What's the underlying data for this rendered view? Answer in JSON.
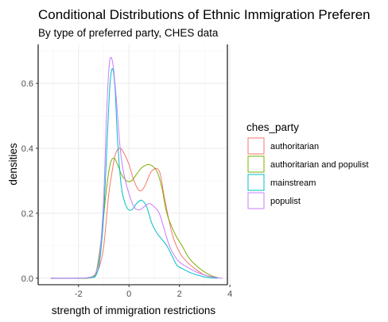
{
  "chart_data": {
    "type": "line",
    "title": "Conditional Distributions of Ethnic Immigration Preferen",
    "subtitle": "By type of preferred party, CHES data",
    "xlabel": "strength of immigration restrictions",
    "ylabel": "densities",
    "xlim": [
      -3.6,
      3.9
    ],
    "ylim": [
      -0.02,
      0.72
    ],
    "x_ticks": [
      -2,
      0,
      2,
      4
    ],
    "x_tick_labels": [
      "-2",
      "0",
      "2",
      "4"
    ],
    "y_ticks": [
      0.0,
      0.2,
      0.4,
      0.6
    ],
    "y_tick_labels": [
      "0.0",
      "0.2",
      "0.4",
      "0.6"
    ],
    "grid": true,
    "legend": {
      "title": "ches_party",
      "position": "right"
    },
    "series": [
      {
        "name": "authoritarian",
        "color": "#F8766D",
        "points": [
          [
            -3.1,
            0.0
          ],
          [
            -2.0,
            0.0
          ],
          [
            -1.5,
            0.003
          ],
          [
            -1.2,
            0.03
          ],
          [
            -1.0,
            0.1
          ],
          [
            -0.8,
            0.26
          ],
          [
            -0.6,
            0.36
          ],
          [
            -0.5,
            0.39
          ],
          [
            -0.35,
            0.4
          ],
          [
            -0.2,
            0.385
          ],
          [
            0.0,
            0.35
          ],
          [
            0.2,
            0.3
          ],
          [
            0.4,
            0.27
          ],
          [
            0.6,
            0.28
          ],
          [
            0.9,
            0.33
          ],
          [
            1.2,
            0.33
          ],
          [
            1.4,
            0.25
          ],
          [
            1.7,
            0.14
          ],
          [
            2.0,
            0.08
          ],
          [
            2.3,
            0.05
          ],
          [
            2.6,
            0.03
          ],
          [
            3.0,
            0.01
          ],
          [
            3.5,
            0.0
          ]
        ]
      },
      {
        "name": "authoritarian and populist",
        "color": "#7CAE00",
        "points": [
          [
            -3.1,
            0.0
          ],
          [
            -2.0,
            0.0
          ],
          [
            -1.5,
            0.002
          ],
          [
            -1.3,
            0.02
          ],
          [
            -1.1,
            0.12
          ],
          [
            -0.9,
            0.27
          ],
          [
            -0.75,
            0.35
          ],
          [
            -0.6,
            0.37
          ],
          [
            -0.45,
            0.35
          ],
          [
            -0.3,
            0.32
          ],
          [
            -0.1,
            0.3
          ],
          [
            0.1,
            0.3
          ],
          [
            0.3,
            0.32
          ],
          [
            0.5,
            0.34
          ],
          [
            0.8,
            0.35
          ],
          [
            1.1,
            0.33
          ],
          [
            1.3,
            0.28
          ],
          [
            1.5,
            0.2
          ],
          [
            1.8,
            0.14
          ],
          [
            2.1,
            0.1
          ],
          [
            2.4,
            0.06
          ],
          [
            2.8,
            0.03
          ],
          [
            3.2,
            0.01
          ],
          [
            3.6,
            0.0
          ]
        ]
      },
      {
        "name": "mainstream",
        "color": "#00BFC4",
        "points": [
          [
            -3.1,
            0.0
          ],
          [
            -2.0,
            0.0
          ],
          [
            -1.5,
            0.002
          ],
          [
            -1.3,
            0.01
          ],
          [
            -1.15,
            0.06
          ],
          [
            -1.0,
            0.2
          ],
          [
            -0.85,
            0.45
          ],
          [
            -0.75,
            0.6
          ],
          [
            -0.65,
            0.645
          ],
          [
            -0.55,
            0.58
          ],
          [
            -0.45,
            0.42
          ],
          [
            -0.3,
            0.28
          ],
          [
            -0.1,
            0.22
          ],
          [
            0.1,
            0.21
          ],
          [
            0.3,
            0.23
          ],
          [
            0.5,
            0.24
          ],
          [
            0.7,
            0.22
          ],
          [
            0.9,
            0.17
          ],
          [
            1.1,
            0.14
          ],
          [
            1.3,
            0.12
          ],
          [
            1.5,
            0.1
          ],
          [
            1.7,
            0.07
          ],
          [
            1.9,
            0.04
          ],
          [
            2.1,
            0.03
          ],
          [
            2.5,
            0.015
          ],
          [
            3.0,
            0.004
          ],
          [
            3.5,
            0.0
          ]
        ]
      },
      {
        "name": "populist",
        "color": "#C77CFF",
        "points": [
          [
            -3.1,
            0.0
          ],
          [
            -2.0,
            0.0
          ],
          [
            -1.5,
            0.004
          ],
          [
            -1.3,
            0.02
          ],
          [
            -1.15,
            0.08
          ],
          [
            -1.0,
            0.25
          ],
          [
            -0.9,
            0.48
          ],
          [
            -0.8,
            0.64
          ],
          [
            -0.72,
            0.68
          ],
          [
            -0.62,
            0.65
          ],
          [
            -0.5,
            0.55
          ],
          [
            -0.35,
            0.4
          ],
          [
            -0.2,
            0.32
          ],
          [
            0.0,
            0.26
          ],
          [
            0.2,
            0.22
          ],
          [
            0.4,
            0.21
          ],
          [
            0.6,
            0.22
          ],
          [
            0.8,
            0.23
          ],
          [
            1.0,
            0.22
          ],
          [
            1.2,
            0.2
          ],
          [
            1.4,
            0.15
          ],
          [
            1.6,
            0.1
          ],
          [
            1.8,
            0.07
          ],
          [
            2.0,
            0.05
          ],
          [
            2.4,
            0.03
          ],
          [
            2.8,
            0.015
          ],
          [
            3.3,
            0.004
          ],
          [
            3.7,
            0.0
          ]
        ]
      }
    ]
  }
}
